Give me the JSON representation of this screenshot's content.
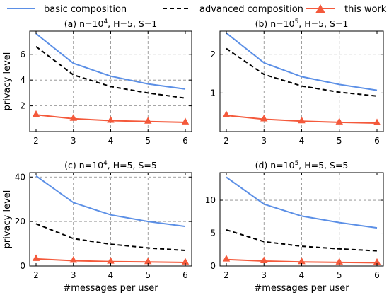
{
  "legend": {
    "items": [
      {
        "label": "basic composition",
        "color": "#5b8fe6",
        "style": "solid",
        "marker": "none"
      },
      {
        "label": "advanced composition",
        "color": "#000000",
        "style": "dashed",
        "marker": "none"
      },
      {
        "label": "this work",
        "color": "#f4593b",
        "style": "solid",
        "marker": "triangle"
      }
    ]
  },
  "chart_data": [
    {
      "type": "line",
      "title": "(a) n=10^4, H=5, S=1",
      "title_base": "(a) n=10",
      "title_exp": "4",
      "title_rest": ", H=5, S=1",
      "xlabel": "",
      "ylabel": "privacy level",
      "x": [
        2,
        3,
        4,
        5,
        6
      ],
      "xticks": [
        "2",
        "3",
        "4",
        "5",
        "6"
      ],
      "ylim": [
        0,
        7.8
      ],
      "yticks": [
        2,
        4,
        6
      ],
      "grid": true,
      "series": [
        {
          "name": "basic composition",
          "values": [
            7.6,
            5.3,
            4.3,
            3.7,
            3.3
          ]
        },
        {
          "name": "advanced composition",
          "values": [
            6.6,
            4.4,
            3.5,
            3.0,
            2.6
          ]
        },
        {
          "name": "this work",
          "values": [
            1.3,
            1.0,
            0.85,
            0.78,
            0.72
          ]
        }
      ]
    },
    {
      "type": "line",
      "title": "(b) n=10^5, H=5, S=1",
      "title_base": "(b) n=10",
      "title_exp": "5",
      "title_rest": ", H=5, S=1",
      "xlabel": "",
      "ylabel": "",
      "x": [
        2,
        3,
        4,
        5,
        6
      ],
      "xticks": [
        "2",
        "3",
        "4",
        "5",
        "6"
      ],
      "ylim": [
        0,
        2.6
      ],
      "yticks": [
        1,
        2
      ],
      "grid": true,
      "series": [
        {
          "name": "basic composition",
          "values": [
            2.55,
            1.78,
            1.42,
            1.22,
            1.07
          ]
        },
        {
          "name": "advanced composition",
          "values": [
            2.15,
            1.48,
            1.18,
            1.02,
            0.92
          ]
        },
        {
          "name": "this work",
          "values": [
            0.42,
            0.32,
            0.27,
            0.24,
            0.22
          ]
        }
      ]
    },
    {
      "type": "line",
      "title": "(c) n=10^4, H=5, S=5",
      "title_base": "(c) n=10",
      "title_exp": "4",
      "title_rest": ", H=5, S=5",
      "xlabel": "#messages per user",
      "ylabel": "privacy level",
      "x": [
        2,
        3,
        4,
        5,
        6
      ],
      "xticks": [
        "2",
        "3",
        "4",
        "5",
        "6"
      ],
      "ylim": [
        0,
        42
      ],
      "yticks": [
        0,
        20,
        40
      ],
      "grid": true,
      "series": [
        {
          "name": "basic composition",
          "values": [
            40.5,
            28.5,
            23.0,
            20.0,
            17.8
          ]
        },
        {
          "name": "advanced composition",
          "values": [
            19.0,
            12.3,
            9.8,
            8.1,
            7.0
          ]
        },
        {
          "name": "this work",
          "values": [
            3.2,
            2.4,
            2.0,
            1.8,
            1.6
          ]
        }
      ]
    },
    {
      "type": "line",
      "title": "(d) n=10^5, H=5, S=5",
      "title_base": "(d) n=10",
      "title_exp": "5",
      "title_rest": ", H=5, S=5",
      "xlabel": "#messages per user",
      "ylabel": "",
      "x": [
        2,
        3,
        4,
        5,
        6
      ],
      "xticks": [
        "2",
        "3",
        "4",
        "5",
        "6"
      ],
      "ylim": [
        0,
        14.2
      ],
      "yticks": [
        0,
        5,
        10
      ],
      "grid": true,
      "series": [
        {
          "name": "basic composition",
          "values": [
            13.5,
            9.4,
            7.6,
            6.6,
            5.8
          ]
        },
        {
          "name": "advanced composition",
          "values": [
            5.5,
            3.7,
            3.0,
            2.6,
            2.3
          ]
        },
        {
          "name": "this work",
          "values": [
            1.0,
            0.75,
            0.62,
            0.55,
            0.5
          ]
        }
      ]
    }
  ]
}
